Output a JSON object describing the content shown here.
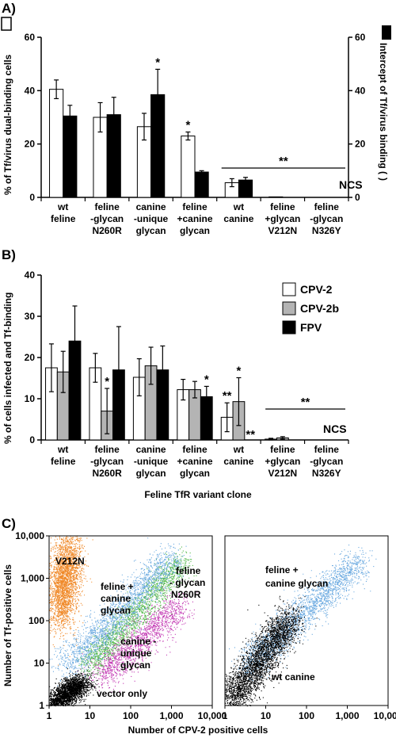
{
  "panelA": {
    "letter": "A)",
    "ylabel_left": "% of Tf/virus dual-binding cells",
    "ylabel_right": "Intercept of Tf/virus binding (",
    "ylabel_right_end": ")",
    "ncs": "NCS",
    "sig_line": "**"
  },
  "panelB": {
    "letter": "B)",
    "ylabel": "% of cells infected and Tf-binding",
    "xlabel": "Feline TfR variant clone",
    "ncs": "NCS",
    "sig_line": "**"
  },
  "panelC": {
    "letter": "C)",
    "ylabel": "Number of Tf-positive cells",
    "xlabel": "Number of CPV-2 positive cells",
    "left_labels": {
      "v212n": "V212N",
      "feline_canine_1": "feline +",
      "feline_canine_2": "canine",
      "feline_canine_3": "glycan",
      "n260r_1": "feline",
      "n260r_2": "- glycan",
      "n260r_3": "N260R",
      "canine_unique_1": "canine -",
      "canine_unique_2": "unique",
      "canine_unique_3": "glycan",
      "vector_only": "vector only"
    },
    "right_labels": {
      "feline_canine_1": "feline +",
      "feline_canine_2": "canine glycan",
      "wt_canine": "wt canine"
    }
  },
  "chart_data": [
    {
      "type": "bar",
      "panel": "A",
      "categories": [
        [
          "wt",
          "feline"
        ],
        [
          "feline",
          "-glycan",
          "N260R"
        ],
        [
          "canine",
          "-unique",
          "glycan"
        ],
        [
          "feline",
          "+canine",
          "glycan"
        ],
        [
          "wt",
          "canine"
        ],
        [
          "feline",
          "+glycan",
          "V212N"
        ],
        [
          "feline",
          "-glycan",
          "N326Y"
        ]
      ],
      "ylabel": "% of Tf/virus dual-binding cells",
      "ylabel_right": "Intercept of Tf/virus binding",
      "ylim": [
        0,
        60
      ],
      "yticks": [
        0,
        20,
        40,
        60
      ],
      "series": [
        {
          "fill": "#ffffff",
          "values": [
            40.5,
            30.0,
            26.5,
            23.0,
            5.5,
            0.2,
            0
          ],
          "errors": [
            3.5,
            5.5,
            5.0,
            1.5,
            1.5,
            0,
            0
          ],
          "stars": [
            "",
            "",
            "",
            "*",
            "",
            "",
            ""
          ]
        },
        {
          "fill": "#000000",
          "values": [
            30.5,
            31.0,
            38.5,
            9.5,
            6.5,
            0,
            0
          ],
          "errors": [
            4.0,
            6.5,
            9.5,
            0.5,
            1.0,
            0,
            0
          ],
          "stars": [
            "",
            "",
            "*",
            "",
            "",
            "",
            ""
          ]
        }
      ],
      "significance_bar": {
        "label": "**",
        "y": 11,
        "from_category": 4,
        "to_category": 6
      },
      "annotation": "NCS",
      "grid": false
    },
    {
      "type": "bar",
      "panel": "B",
      "categories": [
        [
          "wt",
          "feline"
        ],
        [
          "feline",
          "-glycan",
          "N260R"
        ],
        [
          "canine",
          "-unique",
          "glycan"
        ],
        [
          "feline",
          "+canine",
          "glycan"
        ],
        [
          "wt",
          "canine"
        ],
        [
          "feline",
          "+glycan",
          "V212N"
        ],
        [
          "feline",
          "-glycan",
          "N326Y"
        ]
      ],
      "xlabel": "Feline TfR variant clone",
      "ylabel": "% of cells infected and Tf-binding",
      "ylim": [
        0,
        40
      ],
      "yticks": [
        0,
        10,
        20,
        30,
        40
      ],
      "legend_position": "top-right",
      "series": [
        {
          "name": "CPV-2",
          "fill": "#ffffff",
          "values": [
            17.5,
            17.5,
            15.2,
            12.2,
            5.5,
            0.2,
            0
          ],
          "errors": [
            5.8,
            3.5,
            4.5,
            2.5,
            3.5,
            0.2,
            0
          ],
          "stars": [
            "",
            "",
            "",
            "",
            "**",
            "",
            ""
          ]
        },
        {
          "name": "CPV-2b",
          "fill": "#b4b4b4",
          "values": [
            16.5,
            7.0,
            18.0,
            12.2,
            9.3,
            0.5,
            0
          ],
          "errors": [
            5.0,
            5.5,
            4.5,
            2.0,
            5.8,
            0.3,
            0
          ],
          "stars": [
            "",
            "*",
            "",
            "",
            "*",
            "",
            ""
          ]
        },
        {
          "name": "FPV",
          "fill": "#000000",
          "values": [
            24.0,
            17.0,
            17.0,
            10.5,
            0,
            0,
            0
          ],
          "errors": [
            8.5,
            10.5,
            5.8,
            2.5,
            0,
            0,
            0
          ],
          "stars": [
            "",
            "",
            "",
            "*",
            "**",
            "",
            ""
          ]
        }
      ],
      "significance_bar": {
        "label": "**",
        "y": 7.5,
        "from_category": 5,
        "to_category": 6
      },
      "annotation": "NCS",
      "grid": false
    },
    {
      "type": "scatter",
      "panel": "C-left",
      "xscale": "log",
      "yscale": "log",
      "xlim": [
        1,
        10000
      ],
      "ylim": [
        1,
        10000
      ],
      "xticks": [
        "1",
        "10",
        "100",
        "1,000",
        "10,000"
      ],
      "yticks": [
        "1",
        "10",
        "100",
        "1,000",
        "10,000"
      ],
      "xlabel": "Number of CPV-2 positive cells",
      "ylabel": "Number of Tf-positive cells",
      "populations": [
        {
          "label": "vector only",
          "color": "#000000"
        },
        {
          "label": "V212N",
          "color": "#f08a2a"
        },
        {
          "label": "feline + canine glycan",
          "color": "#6aa9e0"
        },
        {
          "label": "feline - glycan N260R",
          "color": "#52b848"
        },
        {
          "label": "canine - unique glycan",
          "color": "#c33ab4"
        }
      ]
    },
    {
      "type": "scatter",
      "panel": "C-right",
      "xscale": "log",
      "yscale": "log",
      "xlim": [
        1,
        10000
      ],
      "ylim": [
        1,
        10000
      ],
      "xticks": [
        "1",
        "10",
        "100",
        "1,000",
        "10,000"
      ],
      "populations": [
        {
          "label": "feline + canine glycan",
          "color": "#6aa9e0"
        },
        {
          "label": "wt canine",
          "color": "#000000"
        }
      ]
    }
  ]
}
